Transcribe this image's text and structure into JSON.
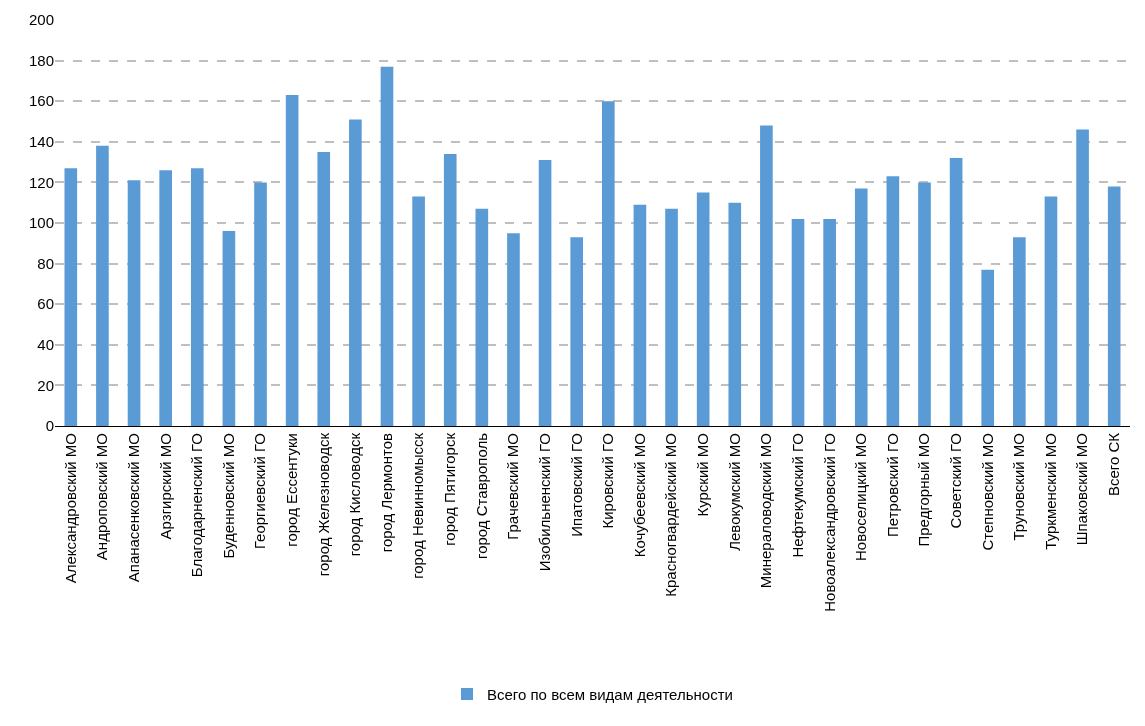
{
  "chart_data": {
    "type": "bar",
    "categories": [
      "Александровский МО",
      "Андроповский МО",
      "Апанасенковский МО",
      "Арзгирский МО",
      "Благодарненский ГО",
      "Буденновский МО",
      "Георгиевский ГО",
      "город Ессентуки",
      "город Железноводск",
      "город Кисловодск",
      "город Лермонтов",
      "город Невинномысск",
      "город Пятигорск",
      "город Ставрополь",
      "Грачевский МО",
      "Изобильненский ГО",
      "Ипатовский ГО",
      "Кировский ГО",
      "Кочубеевский МО",
      "Красногвардейский МО",
      "Курский МО",
      "Левокумский МО",
      "Минераловодский МО",
      "Нефтекумский ГО",
      "Новоалександровский ГО",
      "Новоселицкий МО",
      "Петровский ГО",
      "Предгорный МО",
      "Советский ГО",
      "Степновский МО",
      "Труновский МО",
      "Туркменский МО",
      "Шпаковский МО",
      "Всего СК"
    ],
    "series": [
      {
        "name": "Всего по всем видам деятельности",
        "color": "#5b9bd5",
        "values": [
          127,
          138,
          121,
          126,
          127,
          96,
          120,
          163,
          135,
          151,
          177,
          113,
          134,
          107,
          95,
          131,
          93,
          160,
          109,
          107,
          115,
          110,
          148,
          102,
          102,
          117,
          123,
          120,
          132,
          77,
          93,
          113,
          146,
          118
        ]
      }
    ],
    "ylim": [
      0,
      200
    ],
    "yticks": [
      0,
      20,
      40,
      60,
      80,
      100,
      120,
      140,
      160,
      180,
      200
    ],
    "grid": "y",
    "legend": "bottom"
  }
}
